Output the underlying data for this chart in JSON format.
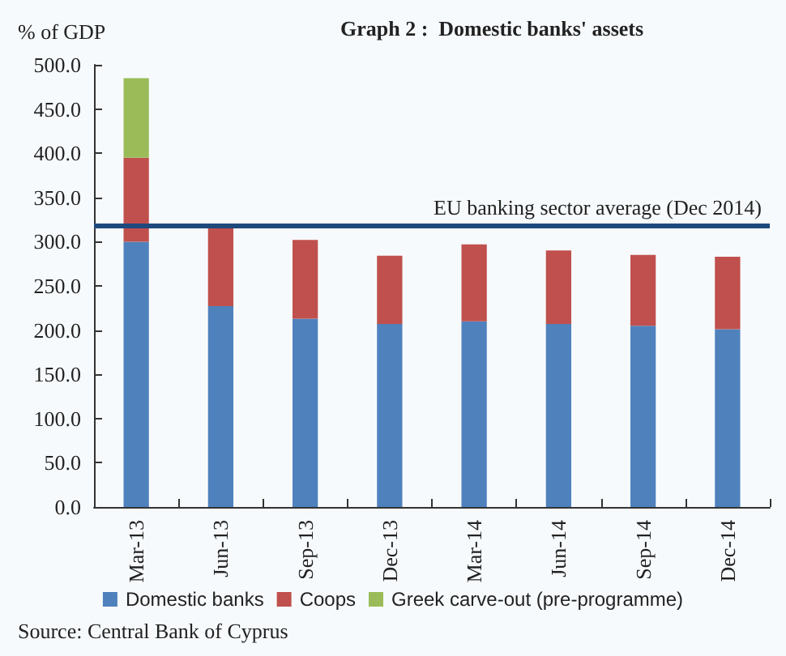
{
  "chart_data": {
    "type": "bar",
    "title": "Graph 2 :  Domestic banks' assets",
    "ylabel": "% of GDP",
    "stacked": true,
    "categories": [
      "Mar-13",
      "Jun-13",
      "Sep-13",
      "Dec-13",
      "Mar-14",
      "Jun-14",
      "Sep-14",
      "Dec-14"
    ],
    "series": [
      {
        "name": "Domestic banks",
        "color": "#4f81bd",
        "values": [
          300,
          227,
          213,
          207,
          210,
          207,
          205,
          201
        ]
      },
      {
        "name": "Coops",
        "color": "#c0504d",
        "values": [
          95,
          91,
          89,
          77,
          87,
          83,
          80,
          82
        ]
      },
      {
        "name": "Greek carve-out (pre-programme)",
        "color": "#9bbb59",
        "values": [
          90,
          null,
          null,
          null,
          null,
          null,
          null,
          null
        ]
      }
    ],
    "ylim": [
      0,
      500
    ],
    "yticks": [
      {
        "value": 0,
        "label": "0.0"
      },
      {
        "value": 50,
        "label": "50.0"
      },
      {
        "value": 100,
        "label": "100.0"
      },
      {
        "value": 150,
        "label": "150.0"
      },
      {
        "value": 200,
        "label": "200.0"
      },
      {
        "value": 250,
        "label": "250.0"
      },
      {
        "value": 300,
        "label": "300.0"
      },
      {
        "value": 350,
        "label": "350.0"
      },
      {
        "value": 400,
        "label": "400.0"
      },
      {
        "value": 450,
        "label": "450.0"
      },
      {
        "value": 500,
        "label": "500.0"
      }
    ],
    "ref_lines": [
      {
        "axis": "y",
        "value": 318,
        "label": "EU banking sector average (Dec 2014)",
        "color": "#1f497d"
      }
    ],
    "legend": "bottom",
    "grid": false,
    "annotations": [
      "Source: Central Bank of Cyprus"
    ]
  }
}
